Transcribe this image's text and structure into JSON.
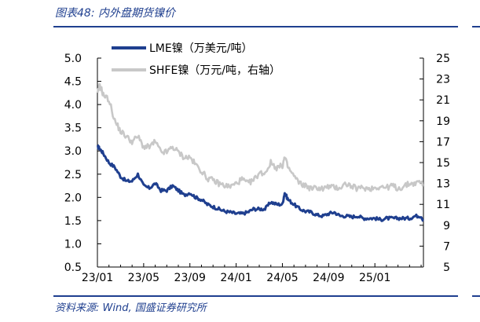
{
  "figure": {
    "title": "图表48:  内外盘期货镍价",
    "source": "资料来源:  Wind,  国盛证券研究所"
  },
  "chart_data": {
    "type": "line",
    "title": "内外盘期货镍价",
    "x_ticks": [
      "23/01",
      "23/05",
      "23/09",
      "24/01",
      "24/05",
      "24/09",
      "25/01"
    ],
    "x_tick_index": [
      0,
      4,
      8,
      12,
      16,
      20,
      24
    ],
    "x_range_months": [
      0,
      28.2
    ],
    "y_left": {
      "min": 0.5,
      "max": 5.0,
      "ticks": [
        "0.5",
        "1.0",
        "1.5",
        "2.0",
        "2.5",
        "3.0",
        "3.5",
        "4.0",
        "4.5",
        "5.0"
      ]
    },
    "y_right": {
      "min": 5,
      "max": 25,
      "ticks": [
        "5",
        "7",
        "9",
        "11",
        "13",
        "15",
        "17",
        "19",
        "21",
        "23",
        "25"
      ]
    },
    "grid": false,
    "legend_position": "top-left",
    "series": [
      {
        "name": "LME镍（万美元/吨）",
        "axis": "left",
        "color": "#1f3f8f",
        "x": [
          0,
          0.2,
          0.5,
          1,
          1.5,
          2,
          2.5,
          3,
          3.5,
          4,
          4.5,
          5,
          5.5,
          6,
          6.5,
          7,
          7.5,
          8,
          8.5,
          9,
          9.5,
          10,
          10.5,
          11,
          11.5,
          12,
          12.5,
          13,
          13.5,
          14,
          14.5,
          15,
          15.5,
          16,
          16.2,
          16.5,
          17,
          17.5,
          18,
          18.5,
          19,
          19.5,
          20,
          20.5,
          21,
          21.5,
          22,
          22.5,
          23,
          23.5,
          24,
          24.5,
          25,
          25.5,
          26,
          26.5,
          27,
          27.5,
          28,
          28.2
        ],
        "values": [
          3.1,
          3.05,
          2.95,
          2.75,
          2.65,
          2.45,
          2.35,
          2.35,
          2.5,
          2.25,
          2.2,
          2.3,
          2.15,
          2.15,
          2.25,
          2.15,
          2.05,
          2.1,
          2.0,
          1.95,
          1.85,
          1.8,
          1.75,
          1.7,
          1.68,
          1.65,
          1.65,
          1.68,
          1.75,
          1.75,
          1.75,
          1.9,
          1.85,
          1.85,
          2.1,
          1.95,
          1.85,
          1.75,
          1.7,
          1.68,
          1.62,
          1.6,
          1.65,
          1.68,
          1.6,
          1.6,
          1.58,
          1.6,
          1.55,
          1.55,
          1.55,
          1.52,
          1.55,
          1.55,
          1.55,
          1.55,
          1.55,
          1.6,
          1.6,
          1.5
        ]
      },
      {
        "name": "SHFE镍（万元/吨，右轴）",
        "axis": "right",
        "color": "#c8c8c8",
        "x": [
          0,
          0.2,
          0.5,
          1,
          1.5,
          2,
          2.5,
          3,
          3.5,
          4,
          4.5,
          5,
          5.5,
          6,
          6.5,
          7,
          7.5,
          8,
          8.5,
          9,
          9.5,
          10,
          10.5,
          11,
          11.5,
          12,
          12.5,
          13,
          13.5,
          14,
          14.5,
          15,
          15.5,
          16,
          16.2,
          16.5,
          17,
          17.5,
          18,
          18.5,
          19,
          19.5,
          20,
          20.5,
          21,
          21.5,
          22,
          22.5,
          23,
          23.5,
          24,
          24.5,
          25,
          25.5,
          26,
          26.5,
          27,
          27.5,
          28,
          28.2
        ],
        "values": [
          21.5,
          22.5,
          21.5,
          21.0,
          19.0,
          18.0,
          17.5,
          17.0,
          17.5,
          16.5,
          16.5,
          17.0,
          16.0,
          16.0,
          16.5,
          16.0,
          15.5,
          15.5,
          14.8,
          14.2,
          13.5,
          13.3,
          13.0,
          12.8,
          12.7,
          13.0,
          13.4,
          13.0,
          13.3,
          14.0,
          14.0,
          15.0,
          14.5,
          14.7,
          15.5,
          14.5,
          13.7,
          13.0,
          12.8,
          12.5,
          12.6,
          12.5,
          12.7,
          12.6,
          12.6,
          13.0,
          12.7,
          12.5,
          12.6,
          12.5,
          12.6,
          12.7,
          12.6,
          12.8,
          12.5,
          12.7,
          13.0,
          13.0,
          13.2,
          12.8
        ]
      }
    ]
  }
}
